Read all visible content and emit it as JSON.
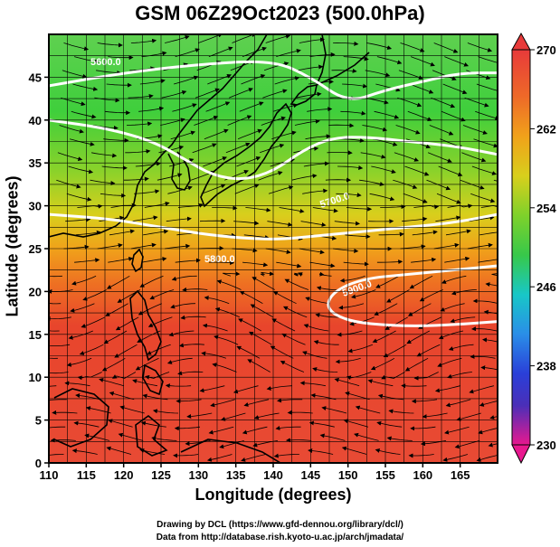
{
  "title": "GSM 06Z29Oct2023 (500.0hPa)",
  "x_axis": {
    "label": "Longitude (degrees)",
    "ticks": [
      "110",
      "115",
      "120",
      "125",
      "130",
      "135",
      "140",
      "145",
      "150",
      "155",
      "160",
      "165"
    ]
  },
  "y_axis": {
    "label": "Latitude  (degrees)",
    "ticks": [
      "0",
      "5",
      "10",
      "15",
      "20",
      "25",
      "30",
      "35",
      "40",
      "45"
    ]
  },
  "colorbar": {
    "ticks": [
      "270",
      "262",
      "254",
      "246",
      "238",
      "230"
    ],
    "colors": [
      "#e8188f",
      "#3b2fc0",
      "#2a6ee8",
      "#18c7c7",
      "#37c84a",
      "#9ed327",
      "#e8c819",
      "#f08b1a",
      "#e8432a",
      "#e83a3a"
    ]
  },
  "contours": [
    {
      "label": "5600.0"
    },
    {
      "label": "5700.0"
    },
    {
      "label": "5800.0"
    },
    {
      "label": "5900.0"
    }
  ],
  "credits": {
    "line1": "Drawing by DCL (https://www.gfd-dennou.org/library/dcl/)",
    "line2": "Data from http://database.rish.kyoto-u.ac.jp/arch/jmadata/"
  },
  "chart_data": {
    "type": "heatmap",
    "title": "GSM 06Z29Oct2023 (500.0hPa)",
    "xlabel": "Longitude (degrees)",
    "ylabel": "Latitude  (degrees)",
    "xlim": [
      110,
      170
    ],
    "ylim": [
      0,
      50
    ],
    "colorbar_range": [
      230,
      270
    ],
    "field_samples": [
      {
        "lat": 48,
        "value": 252
      },
      {
        "lat": 42,
        "value": 254
      },
      {
        "lat": 35,
        "value": 258
      },
      {
        "lat": 30,
        "value": 260
      },
      {
        "lat": 25,
        "value": 264
      },
      {
        "lat": 20,
        "value": 266
      },
      {
        "lat": 10,
        "value": 267
      },
      {
        "lat": 0,
        "value": 266
      }
    ],
    "height_contours": [
      {
        "value": 5600.0,
        "points": [
          [
            110,
            44
          ],
          [
            120,
            45.5
          ],
          [
            130,
            46.5
          ],
          [
            140,
            47
          ],
          [
            145,
            45
          ],
          [
            150,
            42
          ],
          [
            155,
            43.5
          ],
          [
            160,
            44.5
          ],
          [
            165,
            45.5
          ],
          [
            170,
            45.5
          ]
        ]
      },
      {
        "value": 5700.0,
        "points": [
          [
            110,
            40
          ],
          [
            118,
            39
          ],
          [
            124,
            37.5
          ],
          [
            128,
            35.5
          ],
          [
            132,
            33.5
          ],
          [
            136,
            33
          ],
          [
            140,
            34
          ],
          [
            144,
            36.5
          ],
          [
            148,
            38
          ],
          [
            153,
            38
          ],
          [
            158,
            37.5
          ],
          [
            164,
            37
          ],
          [
            170,
            36
          ]
        ]
      },
      {
        "value": 5800.0,
        "points": [
          [
            110,
            29
          ],
          [
            118,
            28.5
          ],
          [
            125,
            27.5
          ],
          [
            132,
            26.5
          ],
          [
            140,
            26
          ],
          [
            146,
            26.5
          ],
          [
            152,
            27
          ],
          [
            158,
            27.5
          ],
          [
            164,
            28
          ],
          [
            170,
            29
          ]
        ]
      },
      {
        "value": 5900.0,
        "points": [
          [
            170,
            23
          ],
          [
            164,
            22.5
          ],
          [
            158,
            22
          ],
          [
            152,
            21.5
          ],
          [
            148,
            20
          ],
          [
            147,
            18
          ],
          [
            150,
            16.5
          ],
          [
            156,
            16
          ],
          [
            162,
            16
          ],
          [
            170,
            16.5
          ]
        ]
      }
    ],
    "grid": true
  }
}
